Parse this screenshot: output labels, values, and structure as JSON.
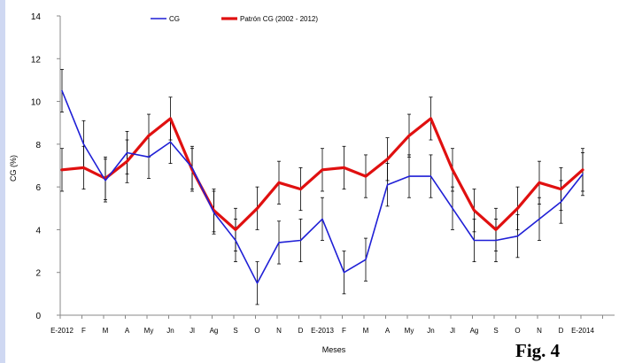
{
  "figure_label": "Fig. 4",
  "chart_data": {
    "type": "line",
    "xlabel": "Meses",
    "ylabel": "CG (%)",
    "ylim": [
      0,
      14
    ],
    "yticks": [
      0,
      2,
      4,
      6,
      8,
      10,
      12,
      14
    ],
    "grid": false,
    "legend_position": "top",
    "categories": [
      "E-2012",
      "F",
      "M",
      "A",
      "My",
      "Jn",
      "Jl",
      "Ag",
      "S",
      "O",
      "N",
      "D",
      "E-2013",
      "F",
      "M",
      "A",
      "My",
      "Jn",
      "Jl",
      "Ag",
      "S",
      "O",
      "N",
      "D",
      "E-2014"
    ],
    "series": [
      {
        "name": "CG",
        "color": "#1f1fd6",
        "values": [
          10.5,
          8.0,
          6.3,
          7.6,
          7.4,
          8.1,
          6.9,
          4.8,
          3.5,
          1.5,
          3.4,
          3.5,
          4.5,
          2.0,
          2.6,
          6.1,
          6.5,
          6.5,
          5.0,
          3.5,
          3.5,
          3.7,
          4.5,
          5.3,
          6.6
        ],
        "errors": [
          1.0,
          1.1,
          1.0,
          1.0,
          1.0,
          1.0,
          1.0,
          1.0,
          1.0,
          1.0,
          1.0,
          1.0,
          1.0,
          1.0,
          1.0,
          1.0,
          1.0,
          1.0,
          1.0,
          1.0,
          1.0,
          1.0,
          1.0,
          1.0,
          1.0
        ]
      },
      {
        "name": "Patrón CG (2002 - 2012)",
        "color": "#e01010",
        "values": [
          6.8,
          6.9,
          6.4,
          7.2,
          8.4,
          9.2,
          6.8,
          4.9,
          4.0,
          5.0,
          6.2,
          5.9,
          6.8,
          6.9,
          6.5,
          7.3,
          8.4,
          9.2,
          6.8,
          4.9,
          4.0,
          5.0,
          6.2,
          5.9,
          6.8
        ],
        "errors": [
          1.0,
          1.0,
          1.0,
          1.0,
          1.0,
          1.0,
          1.0,
          1.0,
          1.0,
          1.0,
          1.0,
          1.0,
          1.0,
          1.0,
          1.0,
          1.0,
          1.0,
          1.0,
          1.0,
          1.0,
          1.0,
          1.0,
          1.0,
          1.0,
          1.0
        ]
      }
    ]
  }
}
